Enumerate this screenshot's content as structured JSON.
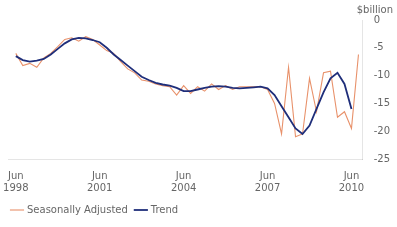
{
  "chart_data": {
    "type": "line",
    "title": "$billion",
    "x": [
      1998.5,
      1998.75,
      1999.0,
      1999.25,
      1999.5,
      1999.75,
      2000.0,
      2000.25,
      2000.5,
      2000.75,
      2001.0,
      2001.25,
      2001.5,
      2001.75,
      2002.0,
      2002.25,
      2002.5,
      2002.75,
      2003.0,
      2003.25,
      2003.5,
      2003.75,
      2004.0,
      2004.25,
      2004.5,
      2004.75,
      2005.0,
      2005.25,
      2005.5,
      2005.75,
      2006.0,
      2006.25,
      2006.5,
      2006.75,
      2007.0,
      2007.25,
      2007.5,
      2007.75,
      2008.0,
      2008.25,
      2008.5,
      2008.75,
      2009.0,
      2009.25,
      2009.5,
      2009.75,
      2010.0,
      2010.25,
      2010.5,
      2010.75
    ],
    "series": [
      {
        "name": "Seasonally Adjusted",
        "color": "#e8916a",
        "values": [
          -6.0,
          -8.2,
          -7.8,
          -8.5,
          -6.8,
          -6.0,
          -4.8,
          -3.5,
          -3.2,
          -3.8,
          -3.0,
          -3.5,
          -4.5,
          -5.5,
          -6.0,
          -7.5,
          -8.8,
          -9.5,
          -10.8,
          -11.0,
          -11.5,
          -11.8,
          -12.0,
          -13.5,
          -11.8,
          -13.2,
          -12.0,
          -12.8,
          -11.5,
          -12.5,
          -11.8,
          -12.5,
          -12.0,
          -12.0,
          -12.0,
          -12.0,
          -12.5,
          -15.0,
          -20.5,
          -8.5,
          -21.0,
          -20.5,
          -10.5,
          -16.5,
          -9.5,
          -9.2,
          -17.5,
          -16.5,
          -19.5,
          -6.2
        ]
      },
      {
        "name": "Trend",
        "color": "#1f2e7a",
        "values": [
          -6.5,
          -7.2,
          -7.5,
          -7.3,
          -7.0,
          -6.2,
          -5.2,
          -4.2,
          -3.5,
          -3.2,
          -3.3,
          -3.6,
          -4.0,
          -5.0,
          -6.2,
          -7.2,
          -8.2,
          -9.2,
          -10.2,
          -10.8,
          -11.3,
          -11.6,
          -11.8,
          -12.2,
          -12.8,
          -12.8,
          -12.5,
          -12.2,
          -12.0,
          -11.9,
          -12.0,
          -12.2,
          -12.3,
          -12.2,
          -12.1,
          -12.0,
          -12.3,
          -13.5,
          -15.5,
          -17.5,
          -19.5,
          -20.5,
          -19.0,
          -16.0,
          -13.0,
          -10.5,
          -9.5,
          -11.5,
          -16.0,
          null
        ]
      }
    ],
    "xlim": [
      1998.25,
      2010.9
    ],
    "xticks": [
      {
        "value": 1998.5,
        "label": "Jun\n1998"
      },
      {
        "value": 2001.5,
        "label": "Jun\n2001"
      },
      {
        "value": 2004.5,
        "label": "Jun\n2004"
      },
      {
        "value": 2007.5,
        "label": "Jun\n2007"
      },
      {
        "value": 2010.5,
        "label": "Jun\n2010"
      }
    ],
    "ylim": [
      -25,
      0
    ],
    "yticks": [
      0,
      -5,
      -10,
      -15,
      -20,
      -25
    ],
    "grid": false,
    "legend": "lower left"
  }
}
